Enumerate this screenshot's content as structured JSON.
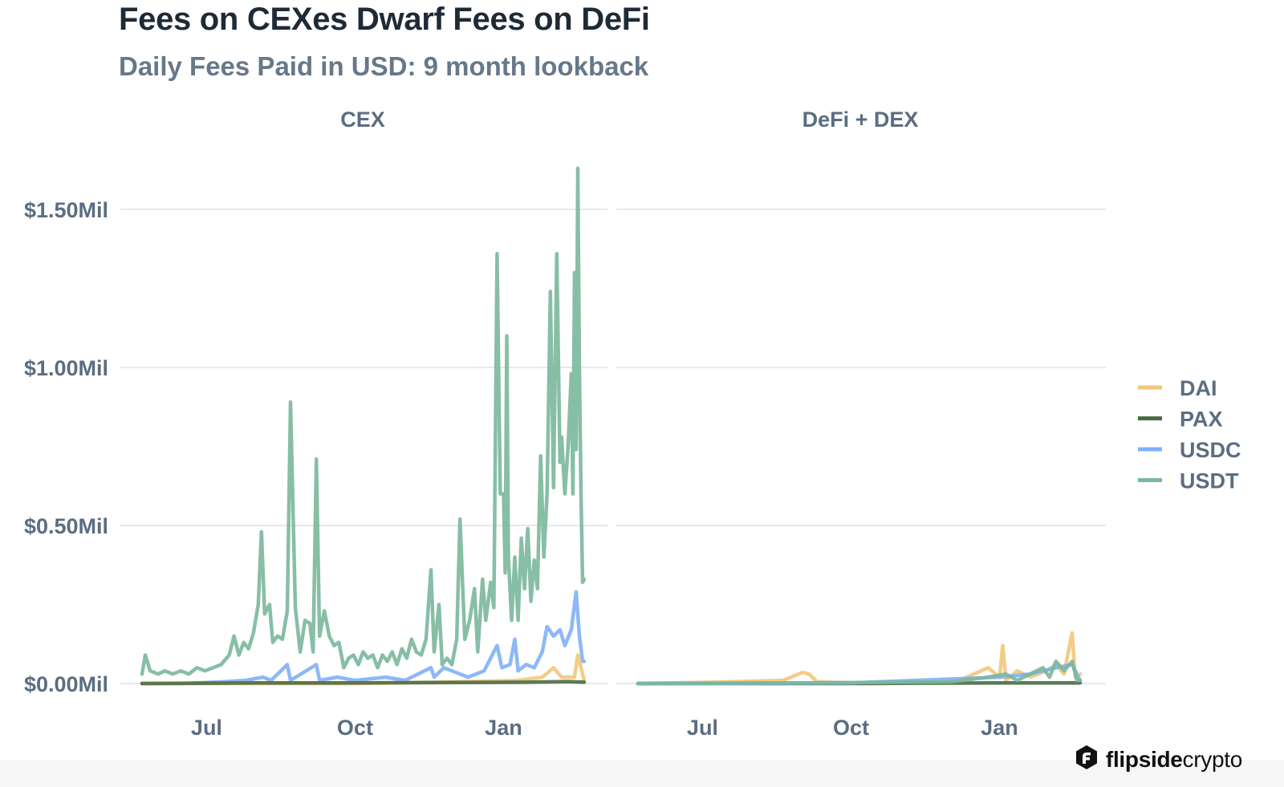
{
  "header": {
    "title": "Fees on CEXes Dwarf Fees on DeFi",
    "subtitle": "Daily Fees Paid in USD: 9 month lookback"
  },
  "brand": {
    "bold": "flipside",
    "light": "crypto",
    "icon": "flipside-logo-icon"
  },
  "chart_data": {
    "type": "line",
    "title": "Fees on CEXes Dwarf Fees on DeFi",
    "subtitle": "Daily Fees Paid in USD: 9 month lookback",
    "xlabel": "",
    "ylabel": "",
    "x_range": [
      "2020-05-22",
      "2021-02-20"
    ],
    "x_ticks": [
      {
        "label": "Jul",
        "date": "2020-07-01"
      },
      {
        "label": "Oct",
        "date": "2020-10-01"
      },
      {
        "label": "Jan",
        "date": "2021-01-01"
      }
    ],
    "ylim": [
      0,
      1.6
    ],
    "y_unit": "Mil USD",
    "y_ticks": [
      {
        "label": "$0.00Mil",
        "value": 0
      },
      {
        "label": "$0.50Mil",
        "value": 0.5
      },
      {
        "label": "$1.00Mil",
        "value": 1.0
      },
      {
        "label": "$1.50Mil",
        "value": 1.5
      }
    ],
    "grid": "horizontal",
    "legend_position": "right",
    "legend": [
      {
        "name": "DAI",
        "color": "#f2c679"
      },
      {
        "name": "PAX",
        "color": "#4d6b46"
      },
      {
        "name": "USDC",
        "color": "#7fb0f7"
      },
      {
        "name": "USDT",
        "color": "#7ab79c"
      }
    ],
    "facets": [
      {
        "name": "CEX",
        "series": [
          {
            "name": "USDT",
            "color": "#7ab79c",
            "points": [
              [
                "2020-05-22",
                0.03
              ],
              [
                "2020-05-24",
                0.09
              ],
              [
                "2020-05-27",
                0.04
              ],
              [
                "2020-06-01",
                0.03
              ],
              [
                "2020-06-05",
                0.04
              ],
              [
                "2020-06-10",
                0.03
              ],
              [
                "2020-06-15",
                0.04
              ],
              [
                "2020-06-20",
                0.03
              ],
              [
                "2020-06-25",
                0.05
              ],
              [
                "2020-06-30",
                0.04
              ],
              [
                "2020-07-05",
                0.05
              ],
              [
                "2020-07-10",
                0.06
              ],
              [
                "2020-07-15",
                0.09
              ],
              [
                "2020-07-18",
                0.15
              ],
              [
                "2020-07-21",
                0.09
              ],
              [
                "2020-07-24",
                0.13
              ],
              [
                "2020-07-27",
                0.11
              ],
              [
                "2020-07-30",
                0.16
              ],
              [
                "2020-08-02",
                0.25
              ],
              [
                "2020-08-04",
                0.48
              ],
              [
                "2020-08-06",
                0.22
              ],
              [
                "2020-08-09",
                0.25
              ],
              [
                "2020-08-11",
                0.13
              ],
              [
                "2020-08-14",
                0.15
              ],
              [
                "2020-08-17",
                0.14
              ],
              [
                "2020-08-20",
                0.23
              ],
              [
                "2020-08-22",
                0.89
              ],
              [
                "2020-08-25",
                0.24
              ],
              [
                "2020-08-28",
                0.1
              ],
              [
                "2020-08-31",
                0.2
              ],
              [
                "2020-09-03",
                0.19
              ],
              [
                "2020-09-05",
                0.1
              ],
              [
                "2020-09-07",
                0.71
              ],
              [
                "2020-09-09",
                0.15
              ],
              [
                "2020-09-12",
                0.23
              ],
              [
                "2020-09-15",
                0.15
              ],
              [
                "2020-09-18",
                0.12
              ],
              [
                "2020-09-21",
                0.13
              ],
              [
                "2020-09-24",
                0.05
              ],
              [
                "2020-09-27",
                0.08
              ],
              [
                "2020-09-30",
                0.09
              ],
              [
                "2020-10-03",
                0.06
              ],
              [
                "2020-10-06",
                0.1
              ],
              [
                "2020-10-09",
                0.08
              ],
              [
                "2020-10-12",
                0.09
              ],
              [
                "2020-10-15",
                0.05
              ],
              [
                "2020-10-18",
                0.09
              ],
              [
                "2020-10-21",
                0.07
              ],
              [
                "2020-10-24",
                0.1
              ],
              [
                "2020-10-27",
                0.06
              ],
              [
                "2020-10-30",
                0.11
              ],
              [
                "2020-11-02",
                0.08
              ],
              [
                "2020-11-05",
                0.14
              ],
              [
                "2020-11-08",
                0.1
              ],
              [
                "2020-11-11",
                0.09
              ],
              [
                "2020-11-14",
                0.14
              ],
              [
                "2020-11-17",
                0.36
              ],
              [
                "2020-11-19",
                0.1
              ],
              [
                "2020-11-22",
                0.25
              ],
              [
                "2020-11-24",
                0.06
              ],
              [
                "2020-11-27",
                0.08
              ],
              [
                "2020-11-30",
                0.06
              ],
              [
                "2020-12-03",
                0.14
              ],
              [
                "2020-12-05",
                0.52
              ],
              [
                "2020-12-08",
                0.14
              ],
              [
                "2020-12-11",
                0.2
              ],
              [
                "2020-12-14",
                0.3
              ],
              [
                "2020-12-16",
                0.1
              ],
              [
                "2020-12-19",
                0.33
              ],
              [
                "2020-12-21",
                0.2
              ],
              [
                "2020-12-24",
                0.32
              ],
              [
                "2020-12-26",
                0.24
              ],
              [
                "2020-12-28",
                1.36
              ],
              [
                "2020-12-30",
                0.6
              ],
              [
                "2021-01-01",
                0.6
              ],
              [
                "2021-01-02",
                0.35
              ],
              [
                "2021-01-03",
                1.1
              ],
              [
                "2021-01-04",
                0.4
              ],
              [
                "2021-01-06",
                0.2
              ],
              [
                "2021-01-08",
                0.4
              ],
              [
                "2021-01-10",
                0.2
              ],
              [
                "2021-01-12",
                0.46
              ],
              [
                "2021-01-14",
                0.3
              ],
              [
                "2021-01-16",
                0.49
              ],
              [
                "2021-01-18",
                0.26
              ],
              [
                "2021-01-20",
                0.39
              ],
              [
                "2021-01-22",
                0.3
              ],
              [
                "2021-01-24",
                0.72
              ],
              [
                "2021-01-26",
                0.4
              ],
              [
                "2021-01-28",
                0.6
              ],
              [
                "2021-01-30",
                1.24
              ],
              [
                "2021-02-01",
                0.62
              ],
              [
                "2021-02-03",
                1.36
              ],
              [
                "2021-02-05",
                0.7
              ],
              [
                "2021-02-06",
                0.78
              ],
              [
                "2021-02-08",
                0.6
              ],
              [
                "2021-02-10",
                0.75
              ],
              [
                "2021-02-12",
                0.98
              ],
              [
                "2021-02-13",
                0.6
              ],
              [
                "2021-02-14",
                1.3
              ],
              [
                "2021-02-15",
                0.74
              ],
              [
                "2021-02-16",
                1.63
              ],
              [
                "2021-02-17",
                1.0
              ],
              [
                "2021-02-18",
                0.6
              ],
              [
                "2021-02-19",
                0.32
              ],
              [
                "2021-02-20",
                0.33
              ]
            ]
          },
          {
            "name": "USDC",
            "color": "#7fb0f7",
            "points": [
              [
                "2020-05-22",
                0.0
              ],
              [
                "2020-06-15",
                0.0
              ],
              [
                "2020-07-10",
                0.005
              ],
              [
                "2020-07-25",
                0.01
              ],
              [
                "2020-08-05",
                0.02
              ],
              [
                "2020-08-10",
                0.01
              ],
              [
                "2020-08-20",
                0.06
              ],
              [
                "2020-08-22",
                0.01
              ],
              [
                "2020-09-07",
                0.06
              ],
              [
                "2020-09-09",
                0.01
              ],
              [
                "2020-09-20",
                0.02
              ],
              [
                "2020-10-01",
                0.01
              ],
              [
                "2020-10-20",
                0.02
              ],
              [
                "2020-11-01",
                0.01
              ],
              [
                "2020-11-17",
                0.05
              ],
              [
                "2020-11-19",
                0.02
              ],
              [
                "2020-11-25",
                0.05
              ],
              [
                "2020-12-05",
                0.03
              ],
              [
                "2020-12-10",
                0.02
              ],
              [
                "2020-12-20",
                0.04
              ],
              [
                "2020-12-28",
                0.12
              ],
              [
                "2020-12-31",
                0.05
              ],
              [
                "2021-01-05",
                0.06
              ],
              [
                "2021-01-08",
                0.14
              ],
              [
                "2021-01-10",
                0.04
              ],
              [
                "2021-01-15",
                0.06
              ],
              [
                "2021-01-20",
                0.05
              ],
              [
                "2021-01-25",
                0.1
              ],
              [
                "2021-01-28",
                0.18
              ],
              [
                "2021-02-01",
                0.15
              ],
              [
                "2021-02-05",
                0.17
              ],
              [
                "2021-02-08",
                0.12
              ],
              [
                "2021-02-12",
                0.17
              ],
              [
                "2021-02-15",
                0.29
              ],
              [
                "2021-02-17",
                0.15
              ],
              [
                "2021-02-19",
                0.07
              ],
              [
                "2021-02-20",
                0.07
              ]
            ]
          },
          {
            "name": "DAI",
            "color": "#f2c679",
            "points": [
              [
                "2020-05-22",
                0.0
              ],
              [
                "2020-08-01",
                0.0
              ],
              [
                "2020-10-01",
                0.0
              ],
              [
                "2020-12-01",
                0.005
              ],
              [
                "2021-01-10",
                0.01
              ],
              [
                "2021-01-25",
                0.02
              ],
              [
                "2021-02-01",
                0.05
              ],
              [
                "2021-02-06",
                0.02
              ],
              [
                "2021-02-14",
                0.02
              ],
              [
                "2021-02-16",
                0.09
              ],
              [
                "2021-02-20",
                0.01
              ]
            ]
          },
          {
            "name": "PAX",
            "color": "#4d6b46",
            "points": [
              [
                "2020-05-22",
                0.0
              ],
              [
                "2020-08-01",
                0.002
              ],
              [
                "2020-10-01",
                0.002
              ],
              [
                "2020-12-01",
                0.003
              ],
              [
                "2021-01-15",
                0.004
              ],
              [
                "2021-02-10",
                0.006
              ],
              [
                "2021-02-20",
                0.004
              ]
            ]
          }
        ]
      },
      {
        "name": "DeFi + DEX",
        "series": [
          {
            "name": "DAI",
            "color": "#f2c679",
            "points": [
              [
                "2020-05-22",
                0.0
              ],
              [
                "2020-07-15",
                0.005
              ],
              [
                "2020-08-20",
                0.01
              ],
              [
                "2020-09-01",
                0.035
              ],
              [
                "2020-09-05",
                0.03
              ],
              [
                "2020-09-10",
                0.005
              ],
              [
                "2020-10-15",
                0.0
              ],
              [
                "2020-12-05",
                0.005
              ],
              [
                "2020-12-25",
                0.05
              ],
              [
                "2021-01-01",
                0.02
              ],
              [
                "2021-01-03",
                0.12
              ],
              [
                "2021-01-05",
                0.01
              ],
              [
                "2021-01-12",
                0.04
              ],
              [
                "2021-01-20",
                0.02
              ],
              [
                "2021-01-30",
                0.04
              ],
              [
                "2021-02-05",
                0.06
              ],
              [
                "2021-02-10",
                0.03
              ],
              [
                "2021-02-15",
                0.16
              ],
              [
                "2021-02-17",
                0.02
              ],
              [
                "2021-02-20",
                0.03
              ]
            ]
          },
          {
            "name": "PAX",
            "color": "#4d6b46",
            "points": [
              [
                "2020-05-22",
                0.0
              ],
              [
                "2020-10-01",
                0.0
              ],
              [
                "2021-01-01",
                0.002
              ],
              [
                "2021-02-20",
                0.002
              ]
            ]
          },
          {
            "name": "USDC",
            "color": "#7fb0f7",
            "points": [
              [
                "2020-05-22",
                0.0
              ],
              [
                "2020-10-01",
                0.002
              ],
              [
                "2021-01-01",
                0.02
              ],
              [
                "2021-01-20",
                0.03
              ],
              [
                "2021-02-05",
                0.05
              ],
              [
                "2021-02-15",
                0.06
              ],
              [
                "2021-02-20",
                0.01
              ]
            ]
          },
          {
            "name": "USDT",
            "color": "#7ab79c",
            "points": [
              [
                "2020-05-22",
                0.0
              ],
              [
                "2020-09-01",
                0.002
              ],
              [
                "2020-12-01",
                0.005
              ],
              [
                "2020-12-25",
                0.02
              ],
              [
                "2021-01-05",
                0.03
              ],
              [
                "2021-01-12",
                0.01
              ],
              [
                "2021-01-20",
                0.03
              ],
              [
                "2021-01-28",
                0.05
              ],
              [
                "2021-02-01",
                0.02
              ],
              [
                "2021-02-05",
                0.07
              ],
              [
                "2021-02-10",
                0.04
              ],
              [
                "2021-02-15",
                0.07
              ],
              [
                "2021-02-18",
                0.01
              ],
              [
                "2021-02-20",
                0.01
              ]
            ]
          }
        ]
      }
    ]
  }
}
